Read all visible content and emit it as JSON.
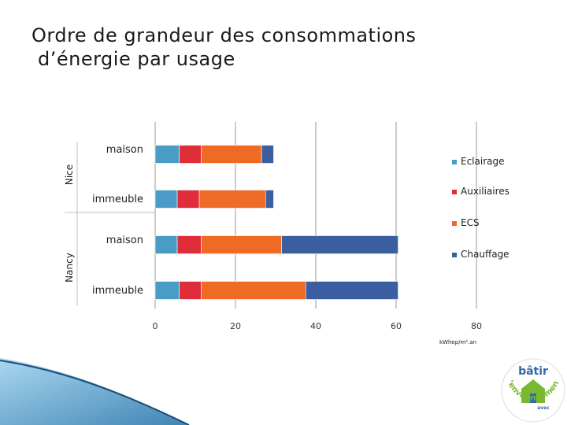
{
  "slide": {
    "title_line1": "Ordre de grandeur des consommations",
    "title_line2": "d’énergie par usage"
  },
  "chart_data": {
    "type": "bar",
    "orientation": "horizontal",
    "stacked": true,
    "title": "",
    "xlabel": "kWhep/m².an",
    "ylabel": "",
    "xlim": [
      0,
      80
    ],
    "x_ticks": [
      0,
      20,
      40,
      60,
      80
    ],
    "grid": true,
    "legend_position": "right",
    "groups": [
      {
        "name": "Nice",
        "categories": [
          "maison",
          "immeuble"
        ]
      },
      {
        "name": "Nancy",
        "categories": [
          "maison",
          "immeuble"
        ]
      }
    ],
    "categories": [
      "Nice maison",
      "Nice immeuble",
      "Nancy maison",
      "Nancy immeuble"
    ],
    "category_labels": [
      "maison",
      "immeuble",
      "maison",
      "immeuble"
    ],
    "series": [
      {
        "name": "Eclairage",
        "color": "#4a9cc7",
        "values": [
          6,
          5.5,
          5.5,
          6
        ]
      },
      {
        "name": "Auxiliaires",
        "color": "#e02d3a",
        "values": [
          5.5,
          5.5,
          6,
          5.5
        ]
      },
      {
        "name": "ECS",
        "color": "#ee6a25",
        "values": [
          15,
          16.5,
          20,
          26
        ]
      },
      {
        "name": "Chauffage",
        "color": "#3a5ea0",
        "values": [
          3,
          2,
          29,
          23
        ]
      }
    ]
  },
  "logo": {
    "top_text": "bâtir",
    "arc_text": "l’environnement",
    "small_text": "avec",
    "colors": {
      "green": "#7bb832",
      "blue": "#2e6aa8"
    }
  }
}
